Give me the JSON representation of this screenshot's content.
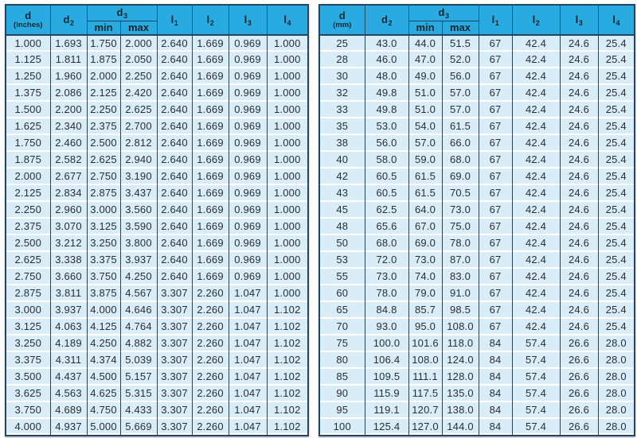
{
  "colors": {
    "header_bg": "#29abe2",
    "row_bg": "#d9edf8",
    "border": "#25445f",
    "row_separator": "#ffffff",
    "text": "#2b2e33"
  },
  "inch_table": {
    "header": {
      "d": {
        "symbol": "d",
        "unit": "(inches)"
      },
      "d2": {
        "symbol": "d",
        "sub": "2"
      },
      "d3": {
        "symbol": "d",
        "sub": "3"
      },
      "d3_min": "min",
      "d3_max": "max",
      "l1": {
        "symbol": "l",
        "sub": "1"
      },
      "l2": {
        "symbol": "l",
        "sub": "2"
      },
      "l3": {
        "symbol": "l",
        "sub": "3"
      },
      "l4": {
        "symbol": "l",
        "sub": "4"
      }
    },
    "rows": [
      [
        "1.000",
        "1.693",
        "1.750",
        "2.000",
        "2.640",
        "1.669",
        "0.969",
        "1.000"
      ],
      [
        "1.125",
        "1.811",
        "1.875",
        "2.050",
        "2.640",
        "1.669",
        "0.969",
        "1.000"
      ],
      [
        "1.250",
        "1.960",
        "2.000",
        "2.250",
        "2.640",
        "1.669",
        "0.969",
        "1.000"
      ],
      [
        "1.375",
        "2.086",
        "2.125",
        "2.420",
        "2.640",
        "1.669",
        "0.969",
        "1.000"
      ],
      [
        "1.500",
        "2.200",
        "2.250",
        "2.625",
        "2.640",
        "1.669",
        "0.969",
        "1.000"
      ],
      [
        "1.625",
        "2.340",
        "2.375",
        "2.700",
        "2.640",
        "1.669",
        "0.969",
        "1.000"
      ],
      [
        "1.750",
        "2.460",
        "2.500",
        "2.812",
        "2.640",
        "1.669",
        "0.969",
        "1.000"
      ],
      [
        "1.875",
        "2.582",
        "2.625",
        "2.940",
        "2.640",
        "1.669",
        "0.969",
        "1.000"
      ],
      [
        "2.000",
        "2.677",
        "2.750",
        "3.190",
        "2.640",
        "1.669",
        "0.969",
        "1.000"
      ],
      [
        "2.125",
        "2.834",
        "2.875",
        "3.437",
        "2.640",
        "1.669",
        "0.969",
        "1.000"
      ],
      [
        "2.250",
        "2.960",
        "3.000",
        "3.560",
        "2.640",
        "1.669",
        "0.969",
        "1.000"
      ],
      [
        "2.375",
        "3.070",
        "3.125",
        "3.590",
        "2.640",
        "1.669",
        "0.969",
        "1.000"
      ],
      [
        "2.500",
        "3.212",
        "3.250",
        "3.800",
        "2.640",
        "1.669",
        "0.969",
        "1.000"
      ],
      [
        "2.625",
        "3.338",
        "3.375",
        "3.937",
        "2.640",
        "1.669",
        "0.969",
        "1.000"
      ],
      [
        "2.750",
        "3.660",
        "3.750",
        "4.250",
        "2.640",
        "1.669",
        "0.969",
        "1.000"
      ],
      [
        "2.875",
        "3.811",
        "3.875",
        "4.567",
        "3.307",
        "2.260",
        "1.047",
        "1.000"
      ],
      [
        "3.000",
        "3.937",
        "4.000",
        "4.646",
        "3.307",
        "2.260",
        "1.047",
        "1.102"
      ],
      [
        "3.125",
        "4.063",
        "4.125",
        "4.764",
        "3.307",
        "2.260",
        "1.047",
        "1.102"
      ],
      [
        "3.250",
        "4.189",
        "4.250",
        "4.882",
        "3.307",
        "2.260",
        "1.047",
        "1.102"
      ],
      [
        "3.375",
        "4.311",
        "4.374",
        "5.039",
        "3.307",
        "2.260",
        "1.047",
        "1.102"
      ],
      [
        "3.500",
        "4.437",
        "4.500",
        "5.157",
        "3.307",
        "2.260",
        "1.047",
        "1.102"
      ],
      [
        "3.625",
        "4.563",
        "4.625",
        "5.315",
        "3.307",
        "2.260",
        "1.047",
        "1.102"
      ],
      [
        "3.750",
        "4.689",
        "4.750",
        "4.433",
        "3.307",
        "2.260",
        "1.047",
        "1.102"
      ],
      [
        "4.000",
        "4.937",
        "5.000",
        "5.669",
        "3.307",
        "2.260",
        "1.047",
        "1.102"
      ]
    ]
  },
  "mm_table": {
    "header": {
      "d": {
        "symbol": "d",
        "unit": "(mm)"
      },
      "d2": {
        "symbol": "d",
        "sub": "2"
      },
      "d3": {
        "symbol": "d",
        "sub": "3"
      },
      "d3_min": "min",
      "d3_max": "max",
      "l1": {
        "symbol": "l",
        "sub": "1"
      },
      "l2": {
        "symbol": "l",
        "sub": "2"
      },
      "l3": {
        "symbol": "l",
        "sub": "3"
      },
      "l4": {
        "symbol": "l",
        "sub": "4"
      }
    },
    "rows": [
      [
        "25",
        "43.0",
        "44.0",
        "51.5",
        "67",
        "42.4",
        "24.6",
        "25.4"
      ],
      [
        "28",
        "46.0",
        "47.0",
        "52.0",
        "67",
        "42.4",
        "24.6",
        "25.4"
      ],
      [
        "30",
        "48.0",
        "49.0",
        "56.0",
        "67",
        "42.4",
        "24.6",
        "25.4"
      ],
      [
        "32",
        "49.8",
        "51.0",
        "57.0",
        "67",
        "42.4",
        "24.6",
        "25.4"
      ],
      [
        "33",
        "49.8",
        "51.0",
        "57.0",
        "67",
        "42.4",
        "24.6",
        "25.4"
      ],
      [
        "35",
        "53.0",
        "54.0",
        "61.5",
        "67",
        "42.4",
        "24.6",
        "25.4"
      ],
      [
        "38",
        "56.0",
        "57.0",
        "66.0",
        "67",
        "42.4",
        "24.6",
        "25.4"
      ],
      [
        "40",
        "58.0",
        "59.0",
        "68.0",
        "67",
        "42.4",
        "24.6",
        "25.4"
      ],
      [
        "42",
        "60.5",
        "61.5",
        "69.0",
        "67",
        "42.4",
        "24.6",
        "25.4"
      ],
      [
        "43",
        "60.5",
        "61.5",
        "70.5",
        "67",
        "42.4",
        "24.6",
        "25.4"
      ],
      [
        "45",
        "62.5",
        "64.0",
        "73.0",
        "67",
        "42.4",
        "24.6",
        "25.4"
      ],
      [
        "48",
        "65.6",
        "67.0",
        "75.0",
        "67",
        "42.4",
        "24.6",
        "25.4"
      ],
      [
        "50",
        "68.0",
        "69.0",
        "78.0",
        "67",
        "42.4",
        "24.6",
        "25.4"
      ],
      [
        "53",
        "72.0",
        "73.0",
        "87.0",
        "67",
        "42.4",
        "24.6",
        "25.4"
      ],
      [
        "55",
        "73.0",
        "74.0",
        "83.0",
        "67",
        "42.4",
        "24.6",
        "25.4"
      ],
      [
        "60",
        "78.0",
        "79.0",
        "91.0",
        "67",
        "42.4",
        "24.6",
        "25.4"
      ],
      [
        "65",
        "84.8",
        "85.7",
        "98.5",
        "67",
        "42.4",
        "24.6",
        "25.4"
      ],
      [
        "70",
        "93.0",
        "95.0",
        "108.0",
        "67",
        "42.4",
        "24.6",
        "25.4"
      ],
      [
        "75",
        "100.0",
        "101.6",
        "118.0",
        "84",
        "57.4",
        "26.6",
        "28.0"
      ],
      [
        "80",
        "106.4",
        "108.0",
        "124.0",
        "84",
        "57.4",
        "26.6",
        "28.0"
      ],
      [
        "85",
        "109.5",
        "111.1",
        "128.0",
        "84",
        "57.4",
        "26.6",
        "28.0"
      ],
      [
        "90",
        "115.9",
        "117.5",
        "135.0",
        "84",
        "57.4",
        "26.6",
        "28.0"
      ],
      [
        "95",
        "119.1",
        "120.7",
        "138.0",
        "84",
        "57.4",
        "26.6",
        "28.0"
      ],
      [
        "100",
        "125.4",
        "127.0",
        "144.0",
        "84",
        "57.4",
        "26.6",
        "28.0"
      ]
    ]
  }
}
